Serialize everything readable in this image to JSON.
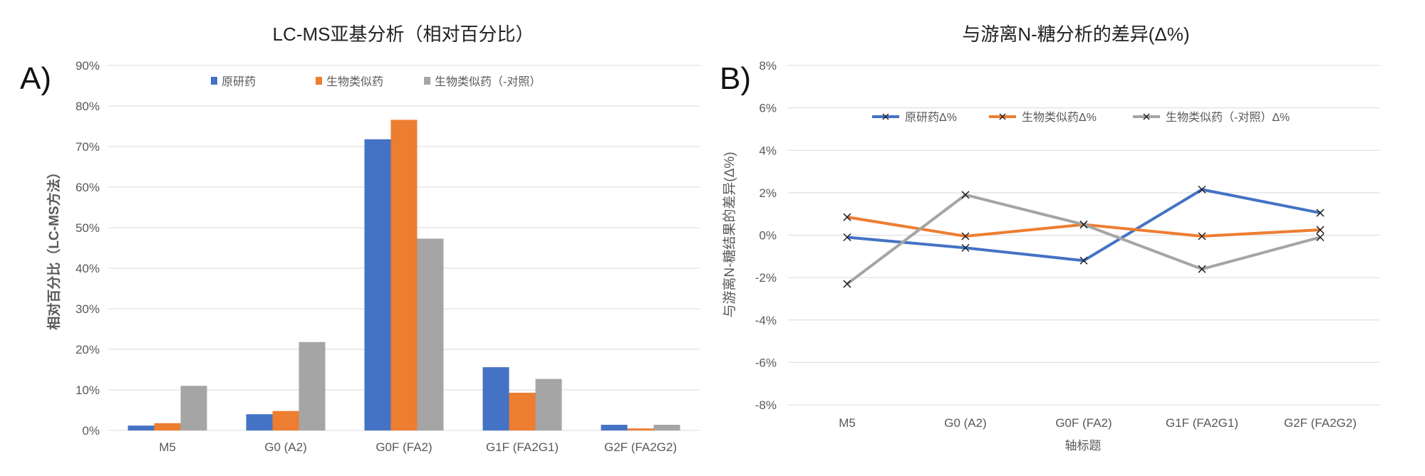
{
  "chart_data": [
    {
      "type": "bar",
      "panel_label": "A)",
      "title": "LC-MS亚基分析（相对百分比）",
      "xlabel": "",
      "ylabel": "相对百分比（LC-MS方法）",
      "ylim": [
        0,
        90
      ],
      "yticks": [
        0,
        10,
        20,
        30,
        40,
        50,
        60,
        70,
        80,
        90
      ],
      "ytick_labels": [
        "0%",
        "10%",
        "20%",
        "30%",
        "40%",
        "50%",
        "60%",
        "70%",
        "80%",
        "90%"
      ],
      "grid": true,
      "legend_position": "top-center",
      "categories": [
        "M5",
        "G0 (A2)",
        "G0F (FA2)",
        "G1F (FA2G1)",
        "G2F (FA2G2)"
      ],
      "series": [
        {
          "name": "原研药",
          "color": "#4472c4",
          "values": [
            1.2,
            4.0,
            71.8,
            15.6,
            1.4
          ]
        },
        {
          "name": "生物类似药",
          "color": "#ed7d31",
          "values": [
            1.8,
            4.8,
            76.6,
            9.3,
            0.5
          ]
        },
        {
          "name": "生物类似药（-对照）",
          "color": "#a5a5a5",
          "values": [
            11.0,
            21.8,
            47.3,
            12.7,
            1.4
          ]
        }
      ]
    },
    {
      "type": "line",
      "panel_label": "B)",
      "title": "与游离N-糖分析的差异(Δ%)",
      "xlabel": "轴标题",
      "ylabel": "与游离N-糖结果的差异(Δ%)",
      "ylim": [
        -8,
        8
      ],
      "yticks": [
        -8,
        -6,
        -4,
        -2,
        0,
        2,
        4,
        6,
        8
      ],
      "ytick_labels": [
        "-8%",
        "-6%",
        "-4%",
        "-2%",
        "0%",
        "2%",
        "4%",
        "6%",
        "8%"
      ],
      "grid": true,
      "legend_position": "top-center",
      "categories": [
        "M5",
        "G0 (A2)",
        "G0F (FA2)",
        "G1F (FA2G1)",
        "G2F (FA2G2)"
      ],
      "series": [
        {
          "name": "原研药Δ%",
          "color": "#4472c4",
          "values": [
            -0.1,
            -0.6,
            -1.2,
            2.15,
            1.05
          ]
        },
        {
          "name": "生物类似药Δ%",
          "color": "#ed7d31",
          "values": [
            0.85,
            -0.05,
            0.5,
            -0.05,
            0.25
          ]
        },
        {
          "name": "生物类似药（-对照）Δ%",
          "color": "#a5a5a5",
          "values": [
            -2.3,
            1.9,
            0.5,
            -1.6,
            -0.1
          ]
        }
      ]
    }
  ]
}
